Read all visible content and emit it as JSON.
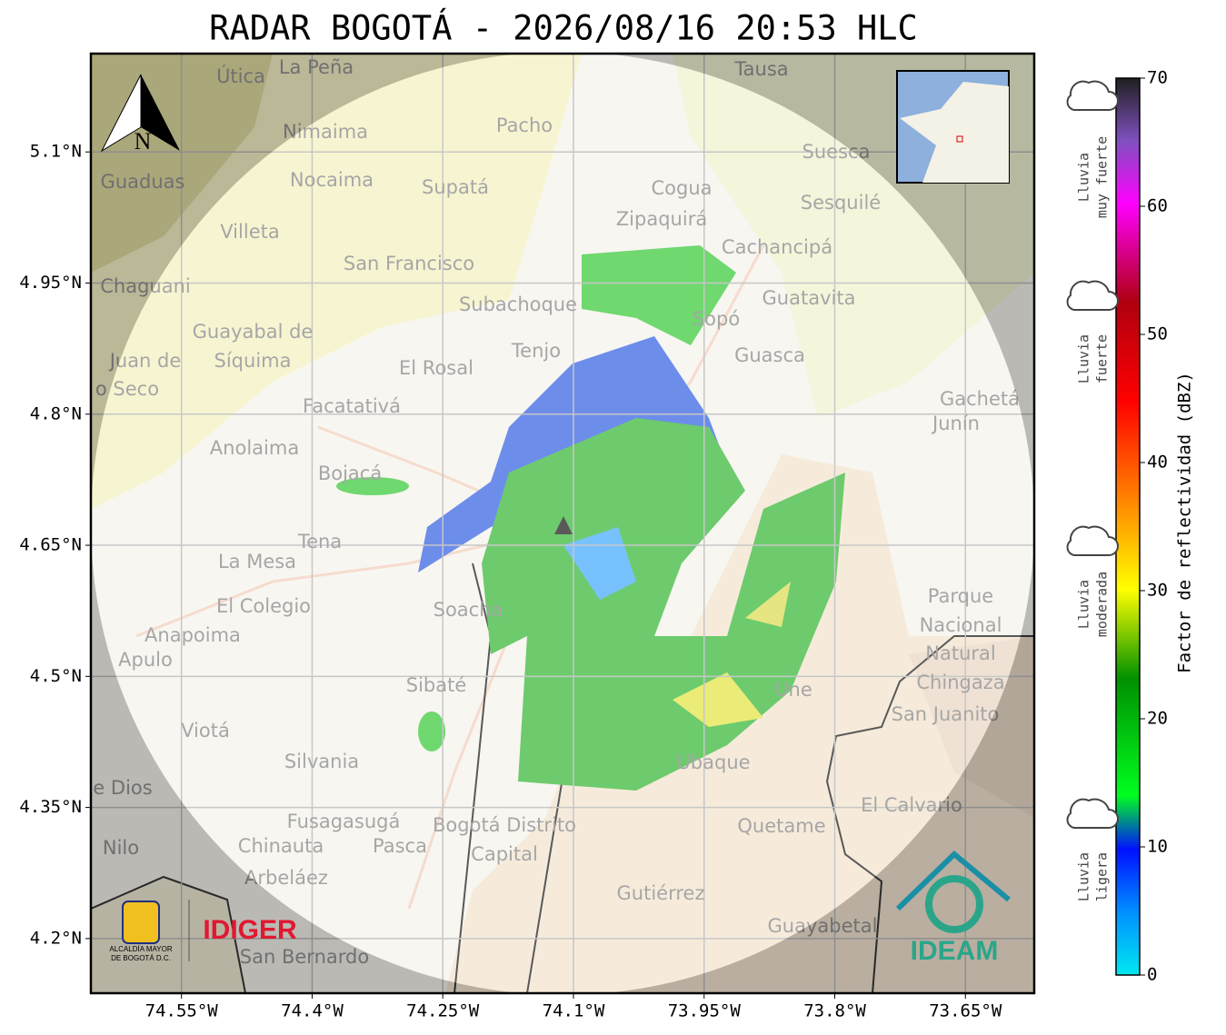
{
  "title": "RADAR BOGOTÁ - 2026/08/16 20:53 HLC",
  "map": {
    "xlim": [
      -74.654,
      -73.571
    ],
    "ylim": [
      4.1375,
      5.2125
    ],
    "xticks": [
      {
        "value": -74.55,
        "label": "74.55°W"
      },
      {
        "value": -74.4,
        "label": "74.4°W"
      },
      {
        "value": -74.25,
        "label": "74.25°W"
      },
      {
        "value": -74.1,
        "label": "74.1°W"
      },
      {
        "value": -73.95,
        "label": "73.95°W"
      },
      {
        "value": -73.8,
        "label": "73.8°W"
      },
      {
        "value": -73.65,
        "label": "73.65°W"
      }
    ],
    "yticks": [
      {
        "value": 5.1,
        "label": "5.1°N"
      },
      {
        "value": 4.95,
        "label": "4.95°N"
      },
      {
        "value": 4.8,
        "label": "4.8°N"
      },
      {
        "value": 4.65,
        "label": "4.65°N"
      },
      {
        "value": 4.5,
        "label": "4.5°N"
      },
      {
        "value": 4.35,
        "label": "4.35°N"
      },
      {
        "value": 4.2,
        "label": "4.2°N"
      }
    ],
    "grid": true,
    "north": "N",
    "places": [
      "La Peña",
      "Útica",
      "Tausa",
      "Pacho",
      "Nimaima",
      "Guaduas",
      "Nocaima",
      "Supatá",
      "Cogua",
      "Suesca",
      "Sesquilé",
      "Villeta",
      "Zipaquirá",
      "Cachancipá",
      "San Francisco",
      "Chaguani",
      "Guatavita",
      "Subachoque",
      "Sopó",
      "Guayabal de",
      "Síquima",
      "Juan de",
      "o Seco",
      "Tenjo",
      "El Rosal",
      "Guasca",
      "Facatativá",
      "Gachetá",
      "Junín",
      "Anolaima",
      "Bojacá",
      "Tena",
      "La Mesa",
      "El Colegio",
      "Anapoima",
      "Apulo",
      "Soacha",
      "Parque",
      "Nacional",
      "Natural",
      "Chingaza",
      "San Juanito",
      "Sibaté",
      "Viotá",
      "Silvania",
      "e Dios",
      "Une",
      "Ubaque",
      "El Calvario",
      "Fusagasugá",
      "Quetame",
      "Bogotá Distrito",
      "Capital",
      "Nilo",
      "Chinauta",
      "Pasca",
      "Arbeláez",
      "Gutiérrez",
      "Guayabetal",
      "San Bernardo"
    ]
  },
  "logos": {
    "alcaldia": [
      "ALCALDÍA MAYOR",
      "DE BOGOTÁ D.C."
    ],
    "idiger": "IDIGER",
    "ideam": "IDEAM"
  },
  "colorbar": {
    "label": "Factor de reflectividad (dBZ)",
    "lim": [
      0,
      70
    ],
    "ticks": [
      0,
      10,
      20,
      30,
      40,
      50,
      60,
      70
    ],
    "categories": [
      [
        "Lluvia",
        "muy fuerte"
      ],
      [
        "Lluvia",
        "fuerte"
      ],
      [
        "Lluvia",
        "moderada"
      ],
      [
        "Lluvia",
        "ligera"
      ]
    ]
  }
}
